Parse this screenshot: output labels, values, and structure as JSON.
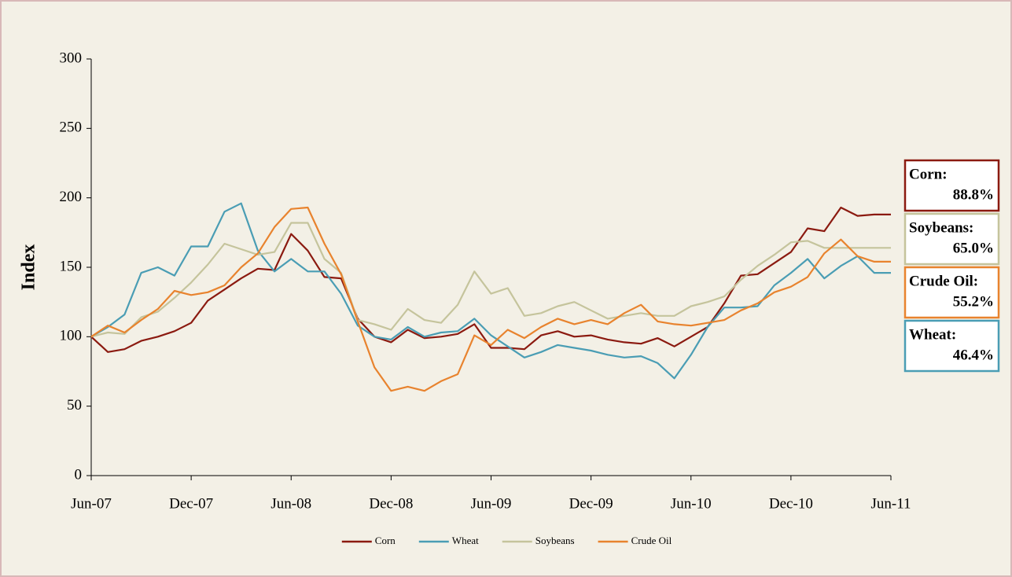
{
  "chart_data": {
    "type": "line",
    "y_label": "Index",
    "categories": [
      "Jun-07",
      null,
      null,
      null,
      null,
      null,
      "Dec-07",
      null,
      null,
      null,
      null,
      null,
      "Jun-08",
      null,
      null,
      null,
      null,
      null,
      "Dec-08",
      null,
      null,
      null,
      null,
      null,
      "Jun-09",
      null,
      null,
      null,
      null,
      null,
      "Dec-09",
      null,
      null,
      null,
      null,
      null,
      "Jun-10",
      null,
      null,
      null,
      null,
      null,
      "Dec-10",
      null,
      null,
      null,
      null,
      null,
      "Jun-11"
    ],
    "ylim": [
      0,
      300
    ],
    "yticks": [
      0,
      50,
      100,
      150,
      200,
      250,
      300
    ],
    "legend": "bottom",
    "series": [
      {
        "name": "Corn",
        "color": "#8b1a10",
        "values": [
          100,
          89,
          91,
          97,
          100,
          104,
          110,
          126,
          134,
          142,
          149,
          148,
          174,
          162,
          143,
          142,
          113,
          100,
          96,
          105,
          99,
          100,
          102,
          109,
          92,
          92,
          91,
          101,
          104,
          100,
          101,
          98,
          96,
          95,
          99,
          93,
          100,
          107,
          124,
          144,
          145,
          153,
          161,
          178,
          176,
          193,
          187,
          188,
          188
        ]
      },
      {
        "name": "Wheat",
        "color": "#4a9db4",
        "values": [
          100,
          107,
          116,
          146,
          150,
          144,
          165,
          165,
          190,
          196,
          162,
          147,
          156,
          147,
          147,
          131,
          108,
          100,
          98,
          107,
          100,
          103,
          104,
          113,
          101,
          93,
          85,
          89,
          94,
          92,
          90,
          87,
          85,
          86,
          81,
          70,
          87,
          107,
          121,
          121,
          122,
          137,
          146,
          156,
          142,
          151,
          158,
          146,
          146
        ]
      },
      {
        "name": "Soybeans",
        "color": "#c5c49c",
        "values": [
          100,
          103,
          102,
          114,
          118,
          128,
          139,
          152,
          167,
          163,
          159,
          161,
          182,
          182,
          156,
          146,
          112,
          109,
          105,
          120,
          112,
          110,
          123,
          147,
          131,
          135,
          115,
          117,
          122,
          125,
          119,
          113,
          115,
          117,
          115,
          115,
          122,
          125,
          129,
          141,
          151,
          159,
          168,
          169,
          164,
          164,
          164,
          164,
          164
        ]
      },
      {
        "name": "Crude Oil",
        "color": "#e8832e",
        "values": [
          100,
          108,
          103,
          112,
          120,
          133,
          130,
          132,
          137,
          150,
          160,
          179,
          192,
          193,
          167,
          145,
          111,
          78,
          61,
          64,
          61,
          68,
          73,
          101,
          94,
          105,
          99,
          107,
          113,
          109,
          112,
          109,
          117,
          123,
          111,
          109,
          108,
          110,
          112,
          119,
          124,
          132,
          136,
          143,
          160,
          170,
          158,
          154,
          154
        ]
      }
    ],
    "annotations": [
      {
        "label": "Corn:",
        "text": "88.8%",
        "color": "#8b1a10"
      },
      {
        "label": "Soybeans:",
        "text": "65.0%",
        "color": "#c5c49c"
      },
      {
        "label": "Crude Oil:",
        "text": "55.2%",
        "color": "#e8832e"
      },
      {
        "label": "Wheat:",
        "text": "46.4%",
        "color": "#4a9db4"
      }
    ]
  }
}
